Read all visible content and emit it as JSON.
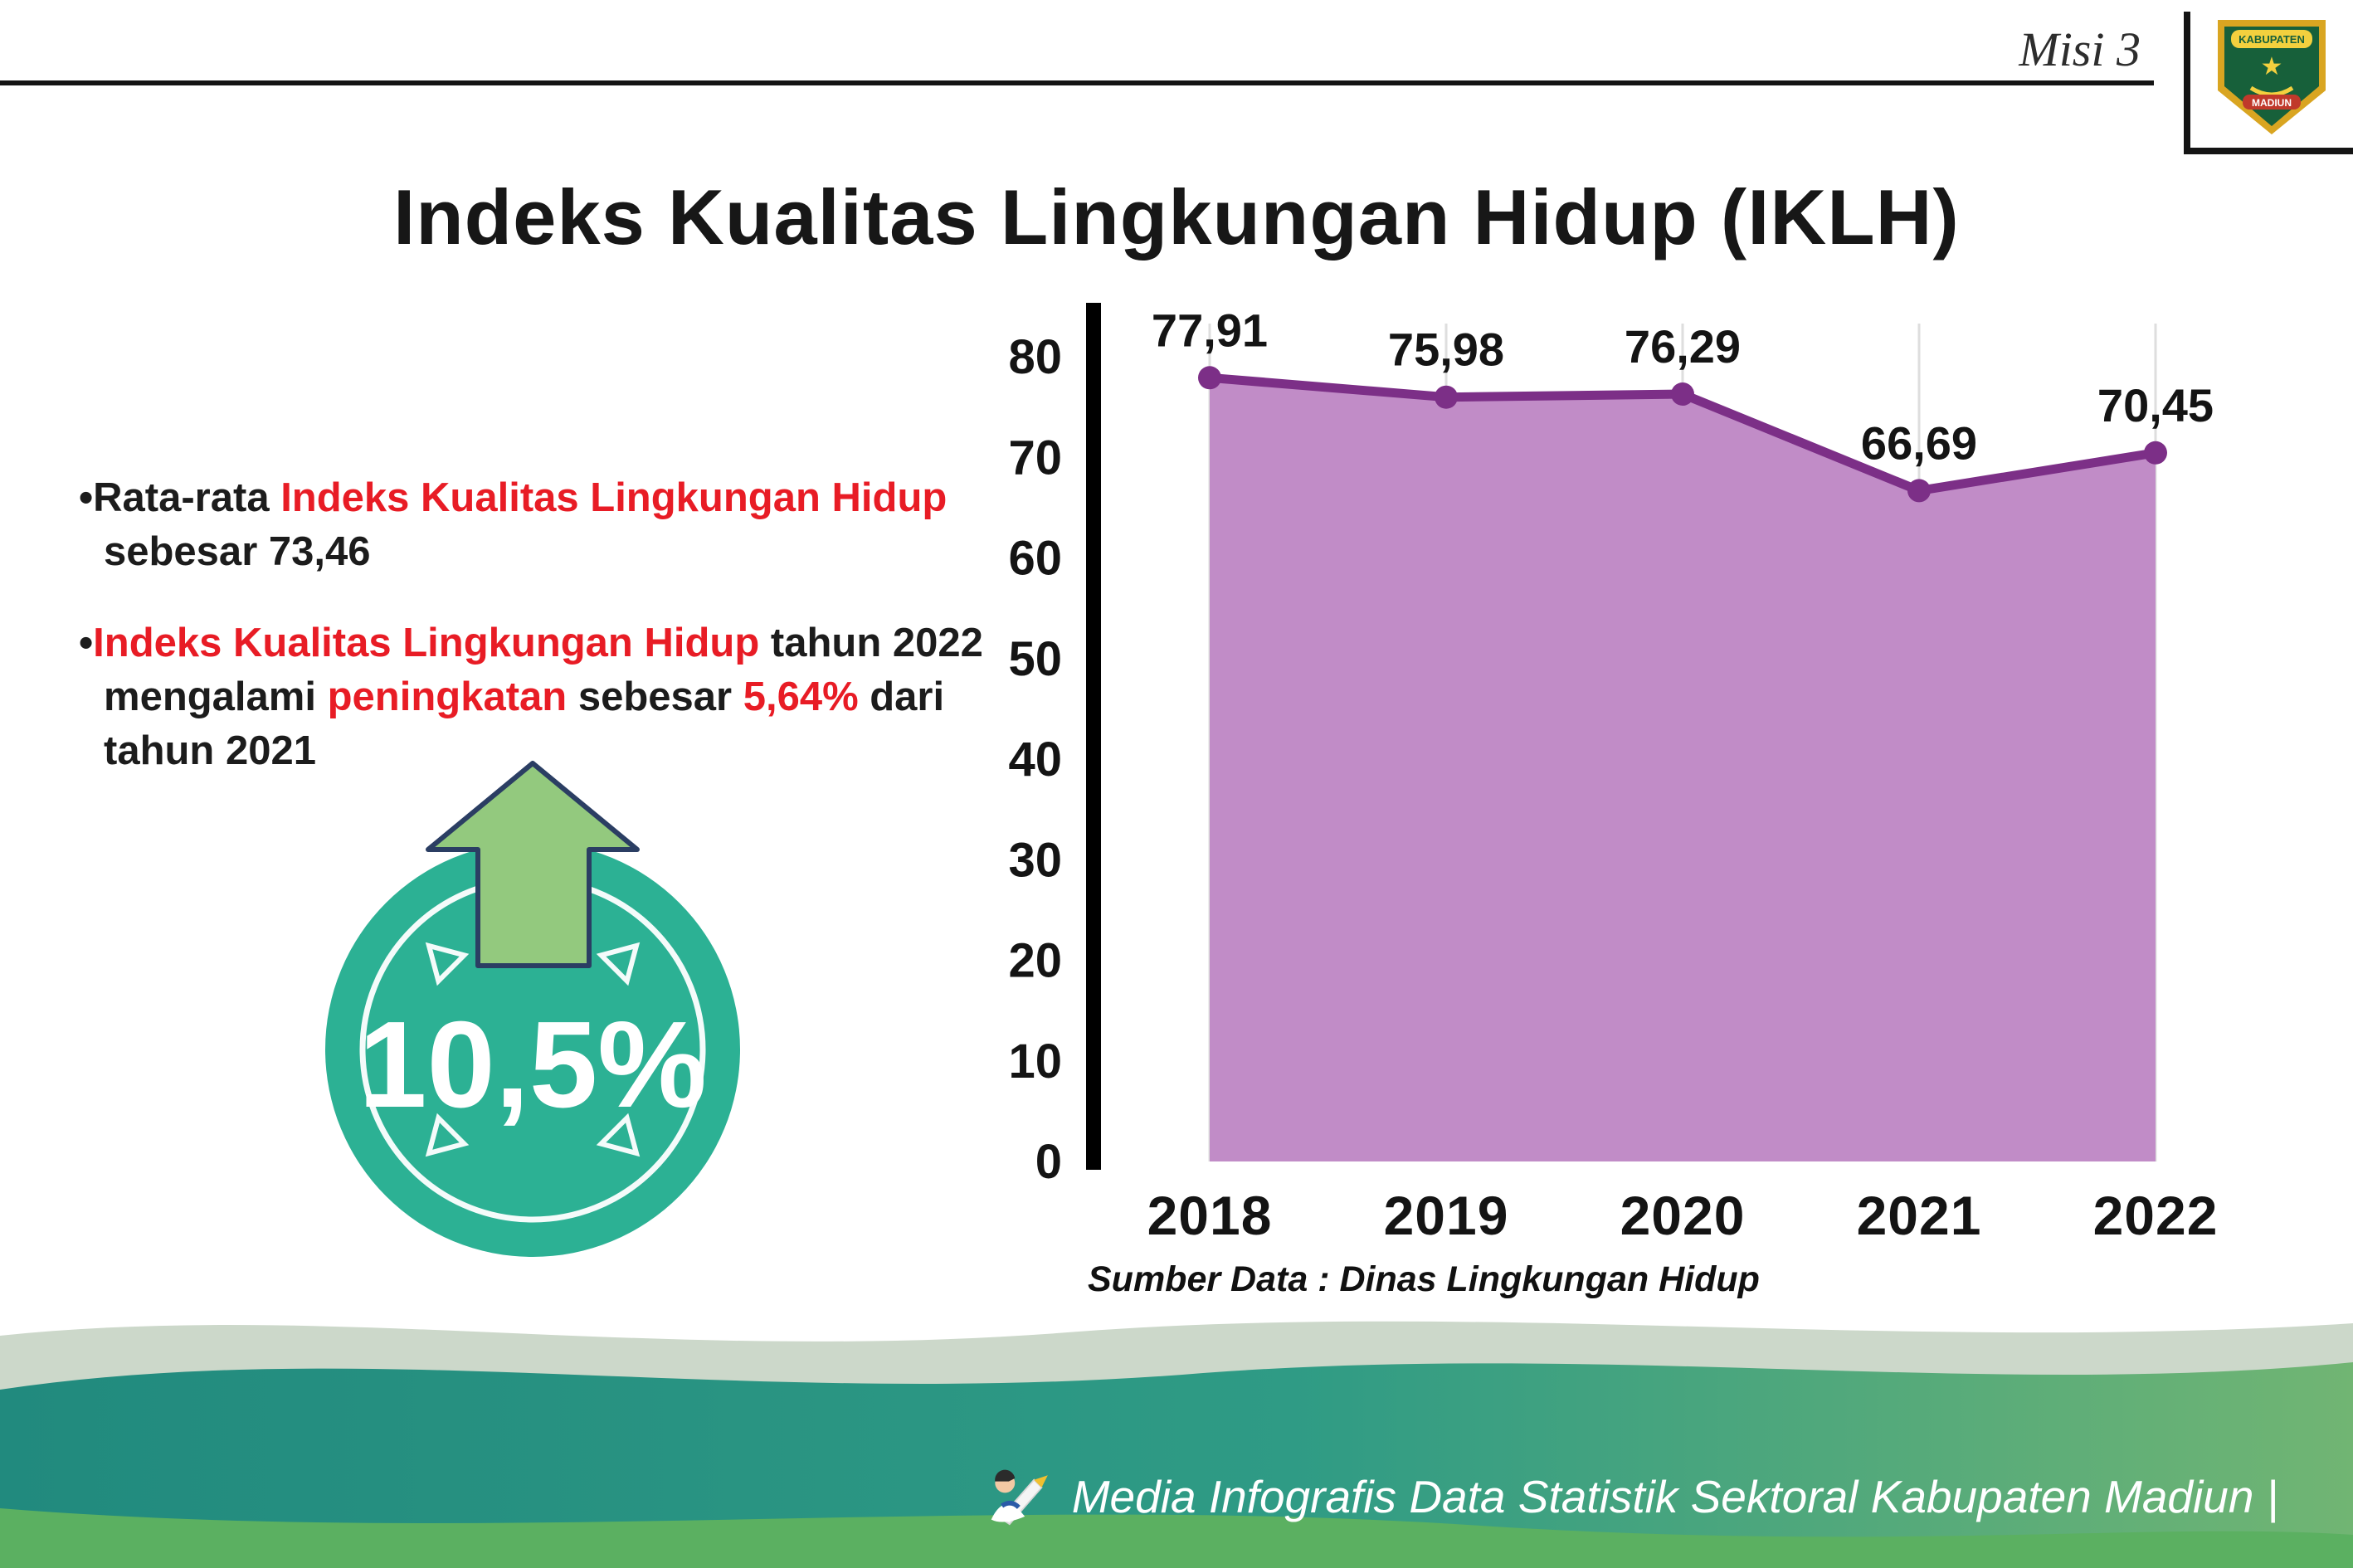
{
  "header": {
    "misi_label": "Misi 3",
    "logo": {
      "top_text": "KABUPATEN",
      "bottom_text": "MADIUN"
    }
  },
  "title": "Indeks Kualitas Lingkungan Hidup (IKLH)",
  "bullets": {
    "marker": "•",
    "b1": [
      {
        "t": "Rata-rata "
      },
      {
        "t": "Indeks Kualitas Lingkungan Hidup"
      },
      {
        "t": " sebesar 73,46"
      }
    ],
    "b2": [
      {
        "t": "Indeks Kualitas Lingkungan Hidup"
      },
      {
        "t": " tahun 2022 mengalami "
      },
      {
        "t": "peningkatan"
      },
      {
        "t": " sebesar "
      },
      {
        "t": "5,64%"
      },
      {
        "t": " dari tahun 2021"
      }
    ]
  },
  "badge": {
    "value": "10,5%"
  },
  "chart_data": {
    "type": "area",
    "categories": [
      "2018",
      "2019",
      "2020",
      "2021",
      "2022"
    ],
    "values": [
      77.91,
      75.98,
      76.29,
      66.69,
      70.45
    ],
    "labels": [
      "77,91",
      "75,98",
      "76,29",
      "66,69",
      "70,45"
    ],
    "title": "",
    "xlabel": "",
    "ylabel": "",
    "ylim": [
      0,
      80
    ],
    "yticks": [
      0,
      10,
      20,
      30,
      40,
      50,
      60,
      70,
      80
    ],
    "grid": "faint-vertical",
    "legend": "none",
    "colors": {
      "area": "#c18cc7",
      "line": "#7c2f87",
      "point": "#7c2f87",
      "grid": "#dedede",
      "axis": "#000000"
    }
  },
  "source_note": "Sumber Data : Dinas Lingkungan Hidup",
  "footer": {
    "text": "Media Infografis Data Statistik Sektoral Kabupaten Madiun |"
  },
  "palette": {
    "red": "#e81c25",
    "teal": "#2cb194",
    "arrow_green": "#93c97e",
    "arrow_outline": "#2b3e63",
    "dark": "#1b1b1b"
  }
}
